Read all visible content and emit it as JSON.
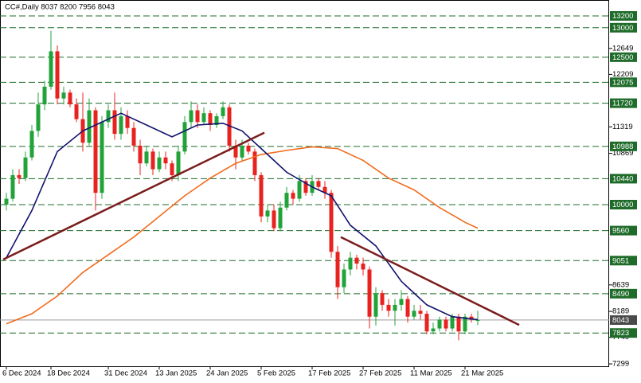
{
  "chart_data": {
    "type": "candlestick",
    "title": "CC#,Daily 8037 8200 7956 8043",
    "categories": [
      "6 Dec 2024",
      null,
      null,
      null,
      null,
      null,
      null,
      "18 Dec 2024",
      null,
      null,
      null,
      null,
      null,
      null,
      null,
      null,
      "31 Dec 2024",
      null,
      null,
      null,
      null,
      null,
      null,
      null,
      "13 Jan 2025",
      null,
      null,
      null,
      null,
      null,
      null,
      null,
      "24 Jan 2025",
      null,
      null,
      null,
      null,
      null,
      null,
      null,
      "5 Feb 2025",
      null,
      null,
      null,
      null,
      null,
      null,
      null,
      "17 Feb 2025",
      null,
      null,
      null,
      null,
      null,
      null,
      null,
      "27 Feb 2025",
      null,
      null,
      null,
      null,
      null,
      null,
      null,
      "11 Mar 2025",
      null,
      null,
      null,
      null,
      null,
      null,
      null,
      "21 Mar 2025",
      null,
      null
    ],
    "open": [
      10000,
      10100,
      10500,
      10450,
      10800,
      11250,
      11700,
      12000,
      12600,
      11800,
      11900,
      11700,
      11450,
      11050,
      11600,
      10200,
      11400,
      11600,
      11200,
      11500,
      11300,
      11000,
      10700,
      10900,
      10600,
      10800,
      10700,
      10500,
      10900,
      11400,
      11600,
      11400,
      11550,
      11350,
      11500,
      11650,
      11000,
      10800,
      11000,
      10900,
      10500,
      9800,
      9900,
      9600,
      9950,
      10200,
      10100,
      10400,
      10200,
      10400,
      10300,
      10200,
      9200,
      8600,
      8900,
      9100,
      9000,
      8900,
      8100,
      8500,
      8300,
      8200,
      8300,
      8400,
      8100,
      8200,
      8150,
      7850,
      7900,
      8050,
      7900,
      8100,
      7850,
      8100,
      8037
    ],
    "high": [
      10200,
      10600,
      10600,
      10900,
      11350,
      11900,
      12100,
      12950,
      12700,
      12000,
      11950,
      11800,
      11900,
      11800,
      11650,
      11500,
      11700,
      11900,
      11650,
      11600,
      11400,
      11100,
      11000,
      10950,
      10900,
      10900,
      10750,
      11000,
      11500,
      11750,
      11700,
      11650,
      11600,
      11550,
      11750,
      11700,
      11100,
      11100,
      11050,
      10950,
      10550,
      10000,
      10000,
      10050,
      10300,
      10250,
      10500,
      10450,
      10500,
      10450,
      10400,
      10250,
      9300,
      9000,
      9200,
      9150,
      9100,
      8950,
      8600,
      8550,
      8400,
      8400,
      8550,
      8450,
      8300,
      8300,
      8200,
      8000,
      8100,
      8100,
      8150,
      8150,
      8150,
      8150,
      8200
    ],
    "low": [
      9900,
      10050,
      10350,
      10400,
      10750,
      11150,
      11600,
      11950,
      11700,
      11700,
      11650,
      11400,
      10900,
      11000,
      9900,
      10100,
      11300,
      11100,
      11100,
      11200,
      10900,
      10500,
      10650,
      10500,
      10550,
      10600,
      10400,
      10400,
      10850,
      11300,
      11300,
      11350,
      11250,
      11300,
      11450,
      10900,
      10600,
      10750,
      10850,
      10400,
      9700,
      9700,
      9550,
      9550,
      9900,
      10000,
      10050,
      10150,
      10150,
      10250,
      10100,
      9100,
      8400,
      8500,
      8800,
      8900,
      8800,
      7900,
      7950,
      8200,
      8100,
      7950,
      8200,
      8000,
      8050,
      8050,
      7800,
      7800,
      7850,
      7850,
      7850,
      7700,
      7800,
      8000,
      7956
    ],
    "close": [
      10100,
      10500,
      10450,
      10800,
      11250,
      11700,
      12000,
      12600,
      11800,
      11900,
      11700,
      11450,
      11050,
      11600,
      10200,
      11400,
      11600,
      11200,
      11500,
      11300,
      11000,
      10700,
      10900,
      10600,
      10800,
      10700,
      10500,
      10900,
      11400,
      11600,
      11400,
      11550,
      11350,
      11500,
      11650,
      11000,
      10800,
      11000,
      10900,
      10500,
      9800,
      9900,
      9600,
      9950,
      10200,
      10100,
      10400,
      10200,
      10400,
      10300,
      10200,
      9200,
      8600,
      8900,
      9100,
      9000,
      8900,
      8100,
      8500,
      8300,
      8200,
      8300,
      8400,
      8100,
      8200,
      8150,
      7850,
      7900,
      8050,
      7900,
      8100,
      7850,
      8100,
      8050,
      8043
    ],
    "up_color": "#22a33a",
    "down_color": "#e8231f",
    "lines": [
      {
        "color": "#f26b1d",
        "x": [
          0,
          4,
          8,
          12,
          16,
          20,
          24,
          28,
          32,
          36,
          40,
          44,
          48,
          52,
          56,
          60,
          64,
          68,
          72,
          74
        ],
        "values": [
          7980,
          8150,
          8450,
          8850,
          9150,
          9450,
          9800,
          10150,
          10450,
          10700,
          10850,
          10920,
          10980,
          10950,
          10750,
          10450,
          10250,
          9950,
          9700,
          9600
        ]
      },
      {
        "color": "#12126e",
        "x": [
          0,
          4,
          8,
          12,
          14,
          18,
          22,
          26,
          30,
          34,
          37,
          40,
          44,
          48,
          51,
          54,
          58,
          62,
          66,
          70,
          74
        ],
        "values": [
          9100,
          9900,
          10900,
          11250,
          11350,
          11550,
          11350,
          11150,
          11350,
          11380,
          11250,
          10950,
          10550,
          10300,
          10150,
          9650,
          9300,
          8700,
          8300,
          8100,
          8050
        ]
      }
    ],
    "trendlines": [
      {
        "color": "#7b1c1c",
        "x": [
          -0.5,
          40.5
        ],
        "values": [
          9070,
          11220
        ]
      },
      {
        "color": "#7b1c1c",
        "x": [
          52.5,
          80.5
        ],
        "values": [
          9450,
          7960
        ]
      }
    ],
    "levels": [
      13200,
      13000,
      12500,
      12075,
      11720,
      10988,
      10440,
      10000,
      9560,
      9051,
      8490,
      7823
    ],
    "level_color": "#1f6b2a",
    "price": 8043,
    "ylim": [
      7259,
      13470
    ],
    "yticks": [
      12649,
      12209,
      11319,
      10869,
      8639,
      8189,
      7749,
      7299
    ]
  }
}
